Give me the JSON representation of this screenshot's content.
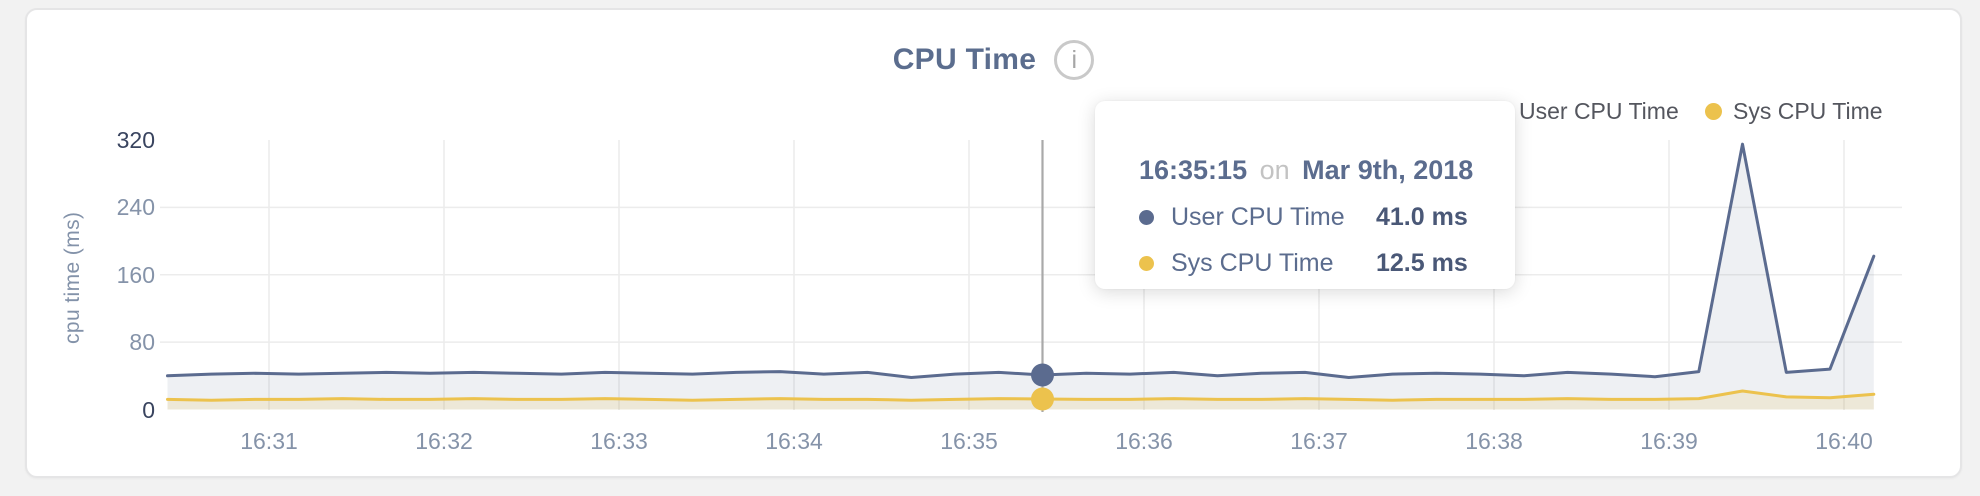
{
  "page": {
    "background": "#f2f2f2",
    "card_background": "#ffffff"
  },
  "header": {
    "title": "CPU Time",
    "info_glyph": "i"
  },
  "legend": [
    {
      "label": "User CPU Time",
      "color": "#5b6b8f"
    },
    {
      "label": "Sys CPU Time",
      "color": "#ecc24d"
    }
  ],
  "tooltip": {
    "time": "16:35:15",
    "conj": "on",
    "date": "Mar 9th, 2018",
    "rows": [
      {
        "label": "User CPU Time",
        "value": "41.0 ms",
        "color": "#5b6b8f"
      },
      {
        "label": "Sys CPU Time",
        "value": "12.5 ms",
        "color": "#ecc24d"
      }
    ]
  },
  "chart_data": {
    "type": "area",
    "title": "CPU Time",
    "xlabel": "",
    "ylabel": "cpu time (ms)",
    "ylim": [
      0,
      320
    ],
    "yticks": [
      0,
      80,
      160,
      240,
      320
    ],
    "xticks": [
      "16:31",
      "16:32",
      "16:33",
      "16:34",
      "16:35",
      "16:36",
      "16:37",
      "16:38",
      "16:39",
      "16:40"
    ],
    "x_unit": "minutes after 16:30, Mar 9th 2018, points every 15 s",
    "x": [
      0.42,
      0.67,
      0.92,
      1.17,
      1.42,
      1.67,
      1.92,
      2.17,
      2.42,
      2.67,
      2.92,
      3.17,
      3.42,
      3.67,
      3.92,
      4.17,
      4.42,
      4.67,
      4.92,
      5.17,
      5.42,
      5.67,
      5.92,
      6.17,
      6.42,
      6.67,
      6.92,
      7.17,
      7.42,
      7.67,
      7.92,
      8.17,
      8.42,
      8.67,
      8.92,
      9.17,
      9.42,
      9.67,
      9.92,
      10.17
    ],
    "series": [
      {
        "name": "User CPU Time",
        "color": "#5b6b8f",
        "fill": "rgba(92,108,142,0.10)",
        "values": [
          40,
          42,
          43,
          42,
          43,
          44,
          43,
          44,
          43,
          42,
          44,
          43,
          42,
          44,
          45,
          42,
          44,
          38,
          42,
          44,
          41,
          43,
          42,
          44,
          40,
          43,
          44,
          38,
          42,
          43,
          42,
          40,
          44,
          42,
          39,
          45,
          315,
          44,
          48,
          182
        ]
      },
      {
        "name": "Sys CPU Time",
        "color": "#ecc24d",
        "fill": "rgba(236,194,77,0.16)",
        "values": [
          12,
          11,
          12,
          12,
          13,
          12,
          12,
          13,
          12,
          12,
          13,
          12,
          11,
          12,
          13,
          12,
          12,
          11,
          12,
          13,
          12.5,
          12,
          12,
          13,
          12,
          12,
          13,
          12,
          11,
          12,
          12,
          12,
          13,
          12,
          12,
          13,
          22,
          15,
          14,
          18
        ]
      },
      {
        "name": "hover",
        "color": "#a9a9a9",
        "fill": "none",
        "values": []
      }
    ],
    "hover": {
      "index": 20,
      "time_label": "16:35:15",
      "user_value_ms": 41.0,
      "sys_value_ms": 12.5
    },
    "grid": true,
    "legend_position": "top-right"
  }
}
